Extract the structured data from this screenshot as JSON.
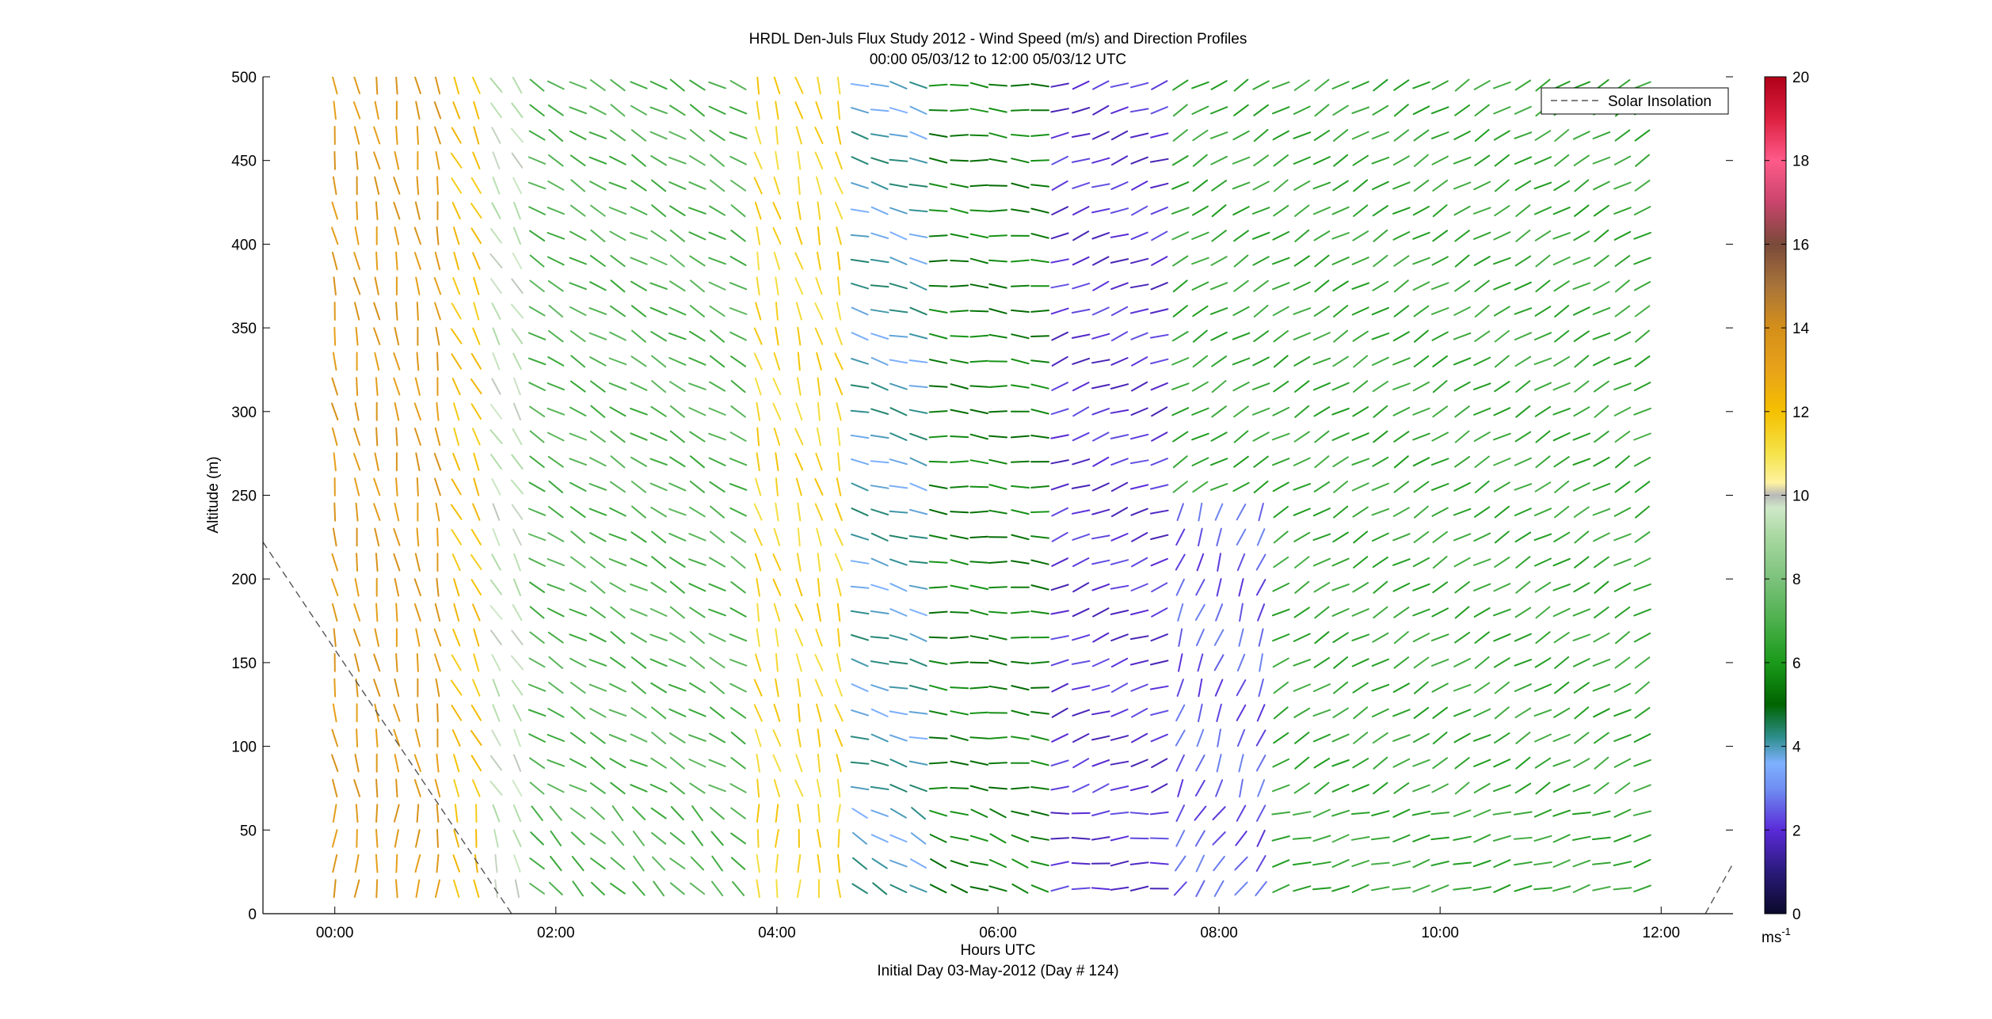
{
  "chart_data": {
    "type": "wind-barb-profile",
    "title": "HRDL Den-Juls Flux Study 2012 - Wind Speed (m/s) and Direction Profiles",
    "subtitle": "00:00 05/03/12 to 12:00 05/03/12  UTC",
    "xlabel": "Hours UTC",
    "xlabel2": "Initial Day 03-May-2012 (Day # 124)",
    "ylabel": "Altitude (m)",
    "xlim": [
      -0.65,
      12.65
    ],
    "ylim": [
      0,
      500
    ],
    "x_ticks": [
      0,
      2,
      4,
      6,
      8,
      10,
      12
    ],
    "x_tick_labels": [
      "00:00",
      "02:00",
      "04:00",
      "06:00",
      "08:00",
      "10:00",
      "12:00"
    ],
    "y_ticks": [
      0,
      50,
      100,
      150,
      200,
      250,
      300,
      350,
      400,
      450,
      500
    ],
    "y_tick_labels": [
      "0",
      "50",
      "100",
      "150",
      "200",
      "250",
      "300",
      "350",
      "400",
      "450",
      "500"
    ],
    "legend": {
      "position": "top-right",
      "entries": [
        {
          "label": "Solar Insolation",
          "style": "dashed",
          "color": "#555555"
        }
      ]
    },
    "solar_insolation": {
      "descending": {
        "x": [
          -0.65,
          1.6
        ],
        "y": [
          222,
          0
        ]
      },
      "ascending": {
        "x": [
          12.4,
          12.65
        ],
        "y": [
          0,
          30
        ]
      }
    },
    "colorbar": {
      "unit_label": "ms",
      "unit_exp": "-1",
      "range": [
        0,
        20
      ],
      "ticks": [
        0,
        2,
        4,
        6,
        8,
        10,
        12,
        14,
        16,
        18,
        20
      ],
      "tick_labels": [
        "0",
        "2",
        "4",
        "6",
        "8",
        "10",
        "12",
        "14",
        "16",
        "18",
        "20"
      ],
      "stops": [
        {
          "v": 0.0,
          "c": "#0a0a2a"
        },
        {
          "v": 1.0,
          "c": "#2a1a7a"
        },
        {
          "v": 2.0,
          "c": "#5a2ad8"
        },
        {
          "v": 3.0,
          "c": "#6f8ff2"
        },
        {
          "v": 3.6,
          "c": "#7fb0ff"
        },
        {
          "v": 4.2,
          "c": "#2f8f8f"
        },
        {
          "v": 5.0,
          "c": "#006400"
        },
        {
          "v": 6.0,
          "c": "#1a9a1a"
        },
        {
          "v": 7.0,
          "c": "#4cb04c"
        },
        {
          "v": 8.0,
          "c": "#7cc27c"
        },
        {
          "v": 9.0,
          "c": "#a8d8a0"
        },
        {
          "v": 9.7,
          "c": "#cfe8c8"
        },
        {
          "v": 10.0,
          "c": "#b8b8b8"
        },
        {
          "v": 10.3,
          "c": "#fff2a0"
        },
        {
          "v": 11.0,
          "c": "#f5e34a"
        },
        {
          "v": 12.0,
          "c": "#f5c000"
        },
        {
          "v": 13.0,
          "c": "#e8a21a"
        },
        {
          "v": 14.0,
          "c": "#d48f1a"
        },
        {
          "v": 15.0,
          "c": "#a8743a"
        },
        {
          "v": 16.0,
          "c": "#7a4a3a"
        },
        {
          "v": 17.0,
          "c": "#c9446c"
        },
        {
          "v": 18.0,
          "c": "#ff5a8a"
        },
        {
          "v": 19.0,
          "c": "#dc2040"
        },
        {
          "v": 20.0,
          "c": "#b00018"
        }
      ]
    },
    "times_hours": [
      0.0,
      0.2,
      0.38,
      0.56,
      0.75,
      0.93,
      1.1,
      1.28,
      1.46,
      1.65,
      1.83,
      2.0,
      2.2,
      2.38,
      2.56,
      2.75,
      2.93,
      3.1,
      3.28,
      3.46,
      3.65,
      3.83,
      4.0,
      4.2,
      4.38,
      4.56,
      4.75,
      4.93,
      5.1,
      5.28,
      5.46,
      5.65,
      5.83,
      6.0,
      6.2,
      6.38,
      6.56,
      6.75,
      6.93,
      7.1,
      7.28,
      7.46,
      7.65,
      7.83,
      8.0,
      8.2,
      8.38,
      8.56,
      8.75,
      8.93,
      9.1,
      9.28,
      9.46,
      9.65,
      9.83,
      10.0,
      10.2,
      10.38,
      10.56,
      10.75,
      10.93,
      11.1,
      11.28,
      11.46,
      11.65,
      11.83
    ],
    "profile_altitudes_m": [
      15,
      30,
      45,
      60,
      75,
      90,
      105,
      120,
      135,
      150,
      165,
      180,
      195,
      210,
      225,
      240,
      255,
      270,
      285,
      300,
      315,
      330,
      345,
      360,
      375,
      390,
      405,
      420,
      435,
      450,
      465,
      480,
      495
    ],
    "wind_regimes": [
      {
        "t_start": 0.0,
        "t_end": 0.95,
        "speed_ms": 13.5,
        "direction_deg": 350,
        "alt_max_m": 500
      },
      {
        "t_start": 0.95,
        "t_end": 1.35,
        "speed_ms": 12.0,
        "direction_deg": 335,
        "alt_max_m": 500
      },
      {
        "t_start": 1.35,
        "t_end": 1.75,
        "speed_ms": 9.5,
        "direction_deg": 330,
        "alt_max_m": 500
      },
      {
        "t_start": 1.75,
        "t_end": 3.7,
        "speed_ms": 7.0,
        "direction_deg": 300,
        "alt_max_m": 500
      },
      {
        "t_start": 3.7,
        "t_end": 4.65,
        "speed_ms": 11.5,
        "direction_deg": 345,
        "alt_max_m": 500
      },
      {
        "t_start": 4.65,
        "t_end": 5.45,
        "speed_ms": 4.0,
        "direction_deg": 285,
        "alt_max_m": 500
      },
      {
        "t_start": 5.45,
        "t_end": 6.4,
        "speed_ms": 5.5,
        "direction_deg": 275,
        "alt_max_m": 500
      },
      {
        "t_start": 6.4,
        "t_end": 7.5,
        "speed_ms": 2.0,
        "direction_deg": 250,
        "alt_max_m": 500
      },
      {
        "t_start": 7.5,
        "t_end": 8.55,
        "speed_ms": 2.5,
        "direction_deg": 200,
        "alt_max_m": 250
      },
      {
        "t_start": 7.5,
        "t_end": 11.85,
        "speed_ms": 6.5,
        "direction_deg": 240,
        "alt_max_m": 500
      }
    ]
  }
}
